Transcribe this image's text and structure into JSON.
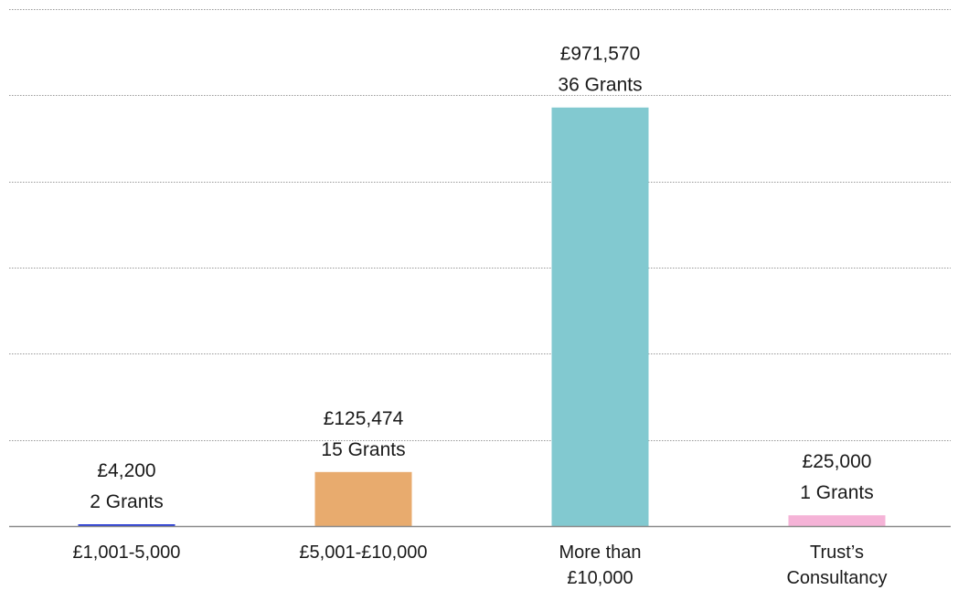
{
  "chart_data": {
    "type": "bar",
    "categories": [
      [
        "£1,001-5,000"
      ],
      [
        "£5,001-£10,000"
      ],
      [
        "More than",
        "£10,000"
      ],
      [
        "Trust’s",
        "Consultancy"
      ]
    ],
    "values": [
      4200,
      125474,
      971570,
      25000
    ],
    "value_labels": [
      "£4,200",
      "£125,474",
      "£971,570",
      "£25,000"
    ],
    "grant_labels": [
      "2 Grants",
      "15 Grants",
      "36 Grants",
      "1 Grants"
    ],
    "colors": [
      "#2b3fd6",
      "#e8ab6e",
      "#82c9d0",
      "#f5b3d7"
    ],
    "ylim": [
      0,
      1200000
    ],
    "grid": true,
    "gridline_step": 200000,
    "title": "",
    "xlabel": "",
    "ylabel": ""
  }
}
